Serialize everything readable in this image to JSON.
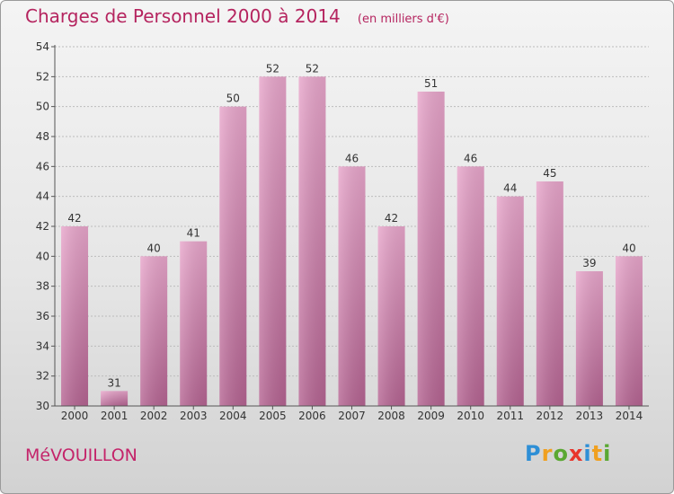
{
  "header": {
    "title": "Charges de Personnel 2000 à 2014",
    "unit": "(en milliers d'€)"
  },
  "footer": {
    "place": "MéVOUILLON",
    "brand": "Proxiti",
    "brand_letters": [
      {
        "ch": "P",
        "color": "#2e8fd6"
      },
      {
        "ch": "r",
        "color": "#f0a020"
      },
      {
        "ch": "o",
        "color": "#5aa832"
      },
      {
        "ch": "x",
        "color": "#e8352b"
      },
      {
        "ch": "i",
        "color": "#2e8fd6"
      },
      {
        "ch": "t",
        "color": "#f0a020"
      },
      {
        "ch": "i",
        "color": "#5aa832"
      }
    ]
  },
  "colors": {
    "bar_top": "#e8a6cb",
    "bar_bottom": "#b56492",
    "accent": "#b5245f"
  },
  "chart_data": {
    "type": "bar",
    "title": "Charges de Personnel 2000 à 2014",
    "subtitle": "(en milliers d'€)",
    "xlabel": "",
    "ylabel": "",
    "categories": [
      "2000",
      "2001",
      "2002",
      "2003",
      "2004",
      "2005",
      "2006",
      "2007",
      "2008",
      "2009",
      "2010",
      "2011",
      "2012",
      "2013",
      "2014"
    ],
    "values": [
      42,
      31,
      40,
      41,
      50,
      52,
      52,
      46,
      42,
      51,
      46,
      44,
      45,
      39,
      40
    ],
    "ylim": [
      30,
      54
    ],
    "yticks": [
      30,
      32,
      34,
      36,
      38,
      40,
      42,
      44,
      46,
      48,
      50,
      52,
      54
    ],
    "grid": true,
    "legend": "none"
  }
}
